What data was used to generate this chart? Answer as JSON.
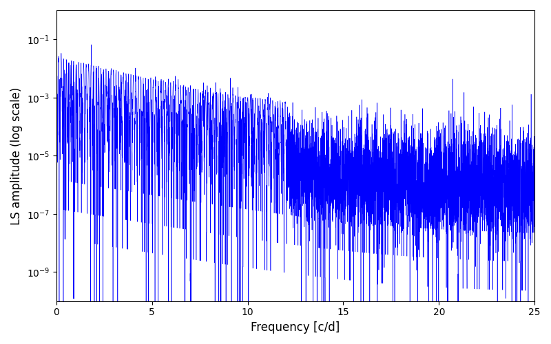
{
  "title": "",
  "xlabel": "Frequency [c/d]",
  "ylabel": "LS amplitude (log scale)",
  "xlim": [
    0,
    25
  ],
  "ylim": [
    1e-10,
    1
  ],
  "xmin": 0.0,
  "xmax": 25.0,
  "n_points": 10000,
  "line_color": "#0000ff",
  "line_width": 0.4,
  "figsize": [
    8.0,
    5.0
  ],
  "dpi": 100,
  "yscale": "log",
  "xticks": [
    0,
    5,
    10,
    15,
    20,
    25
  ],
  "yticks": [
    1e-09,
    1e-07,
    1e-05,
    0.001,
    0.1
  ]
}
